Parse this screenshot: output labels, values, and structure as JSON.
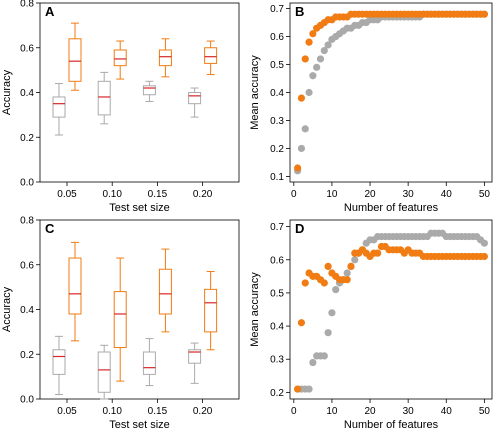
{
  "colors": {
    "gray": "#aaaaaa",
    "orange": "#f07c13",
    "median": "#d62728",
    "axis": "#000000"
  },
  "chart_data": [
    {
      "panel": "A",
      "type": "box",
      "xlabel": "Test set size",
      "ylabel": "Accuracy",
      "categories": [
        "0.05",
        "0.10",
        "0.15",
        "0.20"
      ],
      "ylim": [
        0.0,
        0.8
      ],
      "yticks": [
        "0.0",
        "0.2",
        "0.4",
        "0.6",
        "0.8"
      ],
      "series": [
        {
          "color": "gray",
          "boxes": [
            {
              "whislo": 0.21,
              "q1": 0.29,
              "med": 0.35,
              "q3": 0.38,
              "whishi": 0.44
            },
            {
              "whislo": 0.26,
              "q1": 0.3,
              "med": 0.38,
              "q3": 0.45,
              "whishi": 0.49
            },
            {
              "whislo": 0.36,
              "q1": 0.39,
              "med": 0.42,
              "q3": 0.43,
              "whishi": 0.45
            },
            {
              "whislo": 0.29,
              "q1": 0.35,
              "med": 0.385,
              "q3": 0.4,
              "whishi": 0.42
            }
          ]
        },
        {
          "color": "orange",
          "boxes": [
            {
              "whislo": 0.41,
              "q1": 0.45,
              "med": 0.54,
              "q3": 0.64,
              "whishi": 0.71
            },
            {
              "whislo": 0.46,
              "q1": 0.52,
              "med": 0.55,
              "q3": 0.59,
              "whishi": 0.63
            },
            {
              "whislo": 0.47,
              "q1": 0.52,
              "med": 0.56,
              "q3": 0.59,
              "whishi": 0.64
            },
            {
              "whislo": 0.48,
              "q1": 0.53,
              "med": 0.56,
              "q3": 0.6,
              "whishi": 0.63
            }
          ]
        }
      ]
    },
    {
      "panel": "B",
      "type": "scatter",
      "xlabel": "Number of features",
      "ylabel": "Mean accuracy",
      "xlim": [
        -1,
        52
      ],
      "ylim": [
        0.08,
        0.72
      ],
      "xticks": [
        "0",
        "10",
        "20",
        "30",
        "40",
        "50"
      ],
      "yticks": [
        "0.1",
        "0.2",
        "0.3",
        "0.4",
        "0.5",
        "0.6",
        "0.7"
      ],
      "x": [
        1,
        2,
        3,
        4,
        5,
        6,
        7,
        8,
        9,
        10,
        11,
        12,
        13,
        14,
        15,
        16,
        17,
        18,
        19,
        20,
        21,
        22,
        23,
        24,
        25,
        26,
        27,
        28,
        29,
        30,
        31,
        32,
        33,
        34,
        35,
        36,
        37,
        38,
        39,
        40,
        41,
        42,
        43,
        44,
        45,
        46,
        47,
        48,
        49,
        50
      ],
      "series": [
        {
          "color": "gray",
          "values": [
            0.12,
            0.2,
            0.27,
            0.4,
            0.46,
            0.49,
            0.52,
            0.55,
            0.57,
            0.59,
            0.6,
            0.61,
            0.62,
            0.63,
            0.63,
            0.64,
            0.64,
            0.65,
            0.65,
            0.66,
            0.66,
            0.66,
            0.67,
            0.67,
            0.67,
            0.67,
            0.67,
            0.67,
            0.67,
            0.67,
            0.67,
            0.67,
            0.67,
            0.68,
            0.68,
            0.68,
            0.68,
            0.68,
            0.68,
            0.68,
            0.68,
            0.68,
            0.68,
            0.68,
            0.68,
            0.68,
            0.68,
            0.68,
            0.68,
            0.68
          ]
        },
        {
          "color": "orange",
          "values": [
            0.13,
            0.38,
            0.52,
            0.58,
            0.61,
            0.63,
            0.64,
            0.65,
            0.66,
            0.66,
            0.67,
            0.67,
            0.67,
            0.67,
            0.68,
            0.68,
            0.68,
            0.68,
            0.68,
            0.68,
            0.68,
            0.68,
            0.68,
            0.68,
            0.68,
            0.68,
            0.68,
            0.68,
            0.68,
            0.68,
            0.68,
            0.68,
            0.68,
            0.68,
            0.68,
            0.68,
            0.68,
            0.68,
            0.68,
            0.68,
            0.68,
            0.68,
            0.68,
            0.68,
            0.68,
            0.68,
            0.68,
            0.68,
            0.68,
            0.68
          ]
        }
      ]
    },
    {
      "panel": "C",
      "type": "box",
      "xlabel": "Test set size",
      "ylabel": "Accuracy",
      "categories": [
        "0.05",
        "0.10",
        "0.15",
        "0.20"
      ],
      "ylim": [
        0.0,
        0.8
      ],
      "yticks": [
        "0.0",
        "0.2",
        "0.4",
        "0.6",
        "0.8"
      ],
      "series": [
        {
          "color": "gray",
          "boxes": [
            {
              "whislo": 0.02,
              "q1": 0.11,
              "med": 0.19,
              "q3": 0.22,
              "whishi": 0.28
            },
            {
              "whislo": 0.0,
              "q1": 0.03,
              "med": 0.13,
              "q3": 0.21,
              "whishi": 0.24
            },
            {
              "whislo": 0.06,
              "q1": 0.11,
              "med": 0.14,
              "q3": 0.21,
              "whishi": 0.27
            },
            {
              "whislo": 0.07,
              "q1": 0.16,
              "med": 0.21,
              "q3": 0.22,
              "whishi": 0.25
            }
          ]
        },
        {
          "color": "orange",
          "boxes": [
            {
              "whislo": 0.26,
              "q1": 0.38,
              "med": 0.47,
              "q3": 0.63,
              "whishi": 0.7
            },
            {
              "whislo": 0.08,
              "q1": 0.23,
              "med": 0.38,
              "q3": 0.48,
              "whishi": 0.63
            },
            {
              "whislo": 0.3,
              "q1": 0.38,
              "med": 0.47,
              "q3": 0.58,
              "whishi": 0.67
            },
            {
              "whislo": 0.22,
              "q1": 0.3,
              "med": 0.43,
              "q3": 0.49,
              "whishi": 0.57
            }
          ]
        }
      ]
    },
    {
      "panel": "D",
      "type": "scatter",
      "xlabel": "Number of features",
      "ylabel": "Mean accuracy",
      "xlim": [
        -1,
        52
      ],
      "ylim": [
        0.18,
        0.72
      ],
      "xticks": [
        "0",
        "10",
        "20",
        "30",
        "40",
        "50"
      ],
      "yticks": [
        "0.2",
        "0.3",
        "0.4",
        "0.5",
        "0.6",
        "0.7"
      ],
      "x": [
        1,
        2,
        3,
        4,
        5,
        6,
        7,
        8,
        9,
        10,
        11,
        12,
        13,
        14,
        15,
        16,
        17,
        18,
        19,
        20,
        21,
        22,
        23,
        24,
        25,
        26,
        27,
        28,
        29,
        30,
        31,
        32,
        33,
        34,
        35,
        36,
        37,
        38,
        39,
        40,
        41,
        42,
        43,
        44,
        45,
        46,
        47,
        48,
        49,
        50
      ],
      "series": [
        {
          "color": "gray",
          "values": [
            0.21,
            0.21,
            0.21,
            0.21,
            0.29,
            0.31,
            0.31,
            0.31,
            0.38,
            0.44,
            0.51,
            0.53,
            0.54,
            0.56,
            0.58,
            0.6,
            0.62,
            0.63,
            0.65,
            0.66,
            0.66,
            0.67,
            0.67,
            0.67,
            0.67,
            0.67,
            0.67,
            0.67,
            0.67,
            0.67,
            0.67,
            0.67,
            0.67,
            0.67,
            0.67,
            0.68,
            0.68,
            0.68,
            0.68,
            0.67,
            0.67,
            0.67,
            0.67,
            0.67,
            0.67,
            0.67,
            0.67,
            0.67,
            0.66,
            0.65
          ]
        },
        {
          "color": "orange",
          "values": [
            0.21,
            0.41,
            0.53,
            0.56,
            0.55,
            0.55,
            0.54,
            0.53,
            0.58,
            0.56,
            0.55,
            0.54,
            0.54,
            0.54,
            0.58,
            0.62,
            0.62,
            0.63,
            0.62,
            0.61,
            0.62,
            0.62,
            0.64,
            0.64,
            0.63,
            0.63,
            0.63,
            0.63,
            0.62,
            0.63,
            0.62,
            0.62,
            0.62,
            0.61,
            0.61,
            0.61,
            0.61,
            0.61,
            0.61,
            0.61,
            0.61,
            0.61,
            0.61,
            0.61,
            0.61,
            0.61,
            0.61,
            0.61,
            0.61,
            0.61
          ]
        }
      ]
    }
  ]
}
